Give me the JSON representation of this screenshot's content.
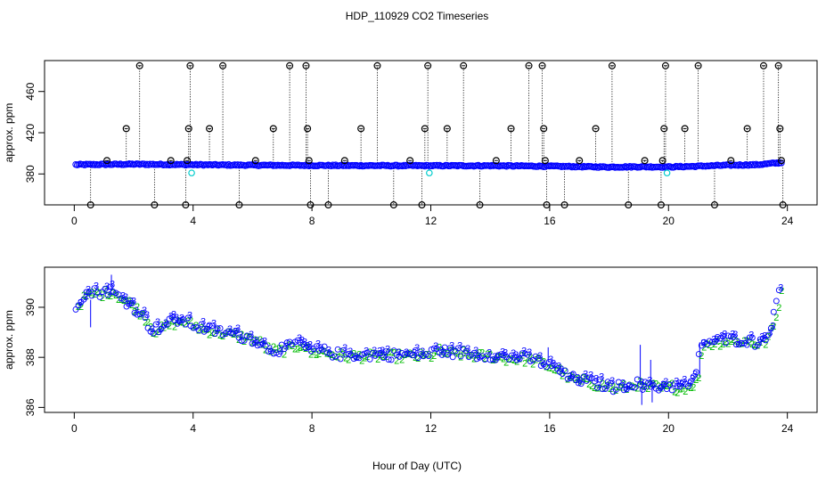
{
  "figure": {
    "title": "HDP_110929  CO2 Timeseries",
    "xlabel": "Hour of Day (UTC)"
  },
  "colors": {
    "frame": "#000000",
    "series_3": "#0000ff",
    "series_2": "#00bb00",
    "cyan_points": "#00cccc",
    "outliers": "#000000"
  },
  "chart_data": [
    {
      "type": "scatter",
      "panel": "top",
      "title": "",
      "xlabel": "",
      "ylabel": "approx. ppm",
      "xlim": [
        -1,
        25
      ],
      "ylim": [
        350,
        490
      ],
      "xticks": [
        0,
        4,
        8,
        12,
        16,
        20,
        24
      ],
      "xtick_labels": [
        "0",
        "4",
        "8",
        "12",
        "16",
        "20",
        "24"
      ],
      "yticks": [
        380,
        420,
        460
      ],
      "ytick_labels": [
        "380",
        "420",
        "460"
      ],
      "grid": false,
      "baseline": [
        [
          0,
          389
        ],
        [
          2,
          389.5
        ],
        [
          4,
          389
        ],
        [
          6,
          388.5
        ],
        [
          8,
          388.3
        ],
        [
          10,
          388.1
        ],
        [
          12,
          388
        ],
        [
          14,
          388
        ],
        [
          16,
          387.5
        ],
        [
          18,
          386.7
        ],
        [
          19,
          387
        ],
        [
          20,
          386.8
        ],
        [
          21,
          387.5
        ],
        [
          22,
          388.5
        ],
        [
          23,
          389
        ],
        [
          23.8,
          391
        ]
      ],
      "cyan_points": [
        [
          3.95,
          381
        ],
        [
          11.95,
          381
        ],
        [
          19.95,
          381
        ]
      ],
      "outlier_spikes": [
        {
          "x": 0.55,
          "y": 350
        },
        {
          "x": 1.1,
          "y": 393
        },
        {
          "x": 1.75,
          "y": 424
        },
        {
          "x": 2.2,
          "y": 485
        },
        {
          "x": 2.7,
          "y": 350
        },
        {
          "x": 3.25,
          "y": 393
        },
        {
          "x": 3.75,
          "y": 350
        },
        {
          "x": 3.8,
          "y": 393
        },
        {
          "x": 3.85,
          "y": 424
        },
        {
          "x": 3.9,
          "y": 485
        },
        {
          "x": 4.55,
          "y": 424
        },
        {
          "x": 5.0,
          "y": 485
        },
        {
          "x": 5.55,
          "y": 350
        },
        {
          "x": 6.1,
          "y": 393
        },
        {
          "x": 6.7,
          "y": 424
        },
        {
          "x": 7.25,
          "y": 485
        },
        {
          "x": 7.8,
          "y": 485
        },
        {
          "x": 7.85,
          "y": 424
        },
        {
          "x": 7.9,
          "y": 393
        },
        {
          "x": 7.95,
          "y": 350
        },
        {
          "x": 8.55,
          "y": 350
        },
        {
          "x": 9.1,
          "y": 393
        },
        {
          "x": 9.65,
          "y": 424
        },
        {
          "x": 10.2,
          "y": 485
        },
        {
          "x": 10.75,
          "y": 350
        },
        {
          "x": 11.3,
          "y": 393
        },
        {
          "x": 11.7,
          "y": 350
        },
        {
          "x": 11.8,
          "y": 424
        },
        {
          "x": 11.9,
          "y": 485
        },
        {
          "x": 12.55,
          "y": 424
        },
        {
          "x": 13.1,
          "y": 485
        },
        {
          "x": 13.65,
          "y": 350
        },
        {
          "x": 14.2,
          "y": 393
        },
        {
          "x": 14.7,
          "y": 424
        },
        {
          "x": 15.3,
          "y": 485
        },
        {
          "x": 15.75,
          "y": 485
        },
        {
          "x": 15.8,
          "y": 424
        },
        {
          "x": 15.85,
          "y": 393
        },
        {
          "x": 15.9,
          "y": 350
        },
        {
          "x": 16.5,
          "y": 350
        },
        {
          "x": 17.0,
          "y": 393
        },
        {
          "x": 17.55,
          "y": 424
        },
        {
          "x": 18.1,
          "y": 485
        },
        {
          "x": 18.65,
          "y": 350
        },
        {
          "x": 19.2,
          "y": 393
        },
        {
          "x": 19.75,
          "y": 350
        },
        {
          "x": 19.8,
          "y": 393
        },
        {
          "x": 19.85,
          "y": 424
        },
        {
          "x": 19.9,
          "y": 485
        },
        {
          "x": 20.55,
          "y": 424
        },
        {
          "x": 21.0,
          "y": 485
        },
        {
          "x": 21.55,
          "y": 350
        },
        {
          "x": 22.1,
          "y": 393
        },
        {
          "x": 22.65,
          "y": 424
        },
        {
          "x": 23.2,
          "y": 485
        },
        {
          "x": 23.7,
          "y": 485
        },
        {
          "x": 23.75,
          "y": 424
        },
        {
          "x": 23.8,
          "y": 393
        },
        {
          "x": 23.85,
          "y": 350
        }
      ]
    },
    {
      "type": "scatter",
      "panel": "bottom",
      "title": "",
      "xlabel": "",
      "ylabel": "approx. ppm",
      "xlim": [
        -1,
        25
      ],
      "ylim": [
        385.8,
        391.6
      ],
      "xticks": [
        0,
        4,
        8,
        12,
        16,
        20,
        24
      ],
      "xtick_labels": [
        "0",
        "4",
        "8",
        "12",
        "16",
        "20",
        "24"
      ],
      "yticks": [
        386,
        388,
        390
      ],
      "ytick_labels": [
        "386",
        "388",
        "390"
      ],
      "grid": false,
      "series_markers": [
        {
          "name": "3",
          "marker": "3",
          "color": "#0000ff"
        },
        {
          "name": "2",
          "marker": "2",
          "color": "#00bb00"
        }
      ],
      "trend": [
        [
          0.05,
          390.1
        ],
        [
          0.3,
          390.5
        ],
        [
          0.6,
          390.6
        ],
        [
          0.9,
          390.6
        ],
        [
          1.2,
          390.7
        ],
        [
          1.5,
          390.4
        ],
        [
          1.8,
          390.2
        ],
        [
          2.1,
          389.9
        ],
        [
          2.4,
          389.5
        ],
        [
          2.6,
          389.1
        ],
        [
          2.9,
          389.2
        ],
        [
          3.2,
          389.4
        ],
        [
          3.5,
          389.5
        ],
        [
          3.8,
          389.4
        ],
        [
          4.2,
          389.2
        ],
        [
          4.6,
          389.1
        ],
        [
          5.0,
          389.0
        ],
        [
          5.4,
          388.9
        ],
        [
          5.8,
          388.8
        ],
        [
          6.1,
          388.7
        ],
        [
          6.4,
          388.4
        ],
        [
          6.8,
          388.3
        ],
        [
          7.2,
          388.4
        ],
        [
          7.6,
          388.6
        ],
        [
          7.9,
          388.2
        ],
        [
          8.2,
          388.3
        ],
        [
          8.6,
          388.2
        ],
        [
          9.0,
          388.1
        ],
        [
          9.5,
          388.1
        ],
        [
          10.0,
          388.1
        ],
        [
          10.5,
          388.1
        ],
        [
          11.0,
          388.1
        ],
        [
          11.5,
          388.1
        ],
        [
          11.9,
          388.1
        ],
        [
          12.2,
          388.3
        ],
        [
          12.6,
          388.2
        ],
        [
          13.0,
          388.2
        ],
        [
          13.5,
          388.1
        ],
        [
          14.0,
          388.1
        ],
        [
          14.5,
          388.0
        ],
        [
          15.0,
          388.0
        ],
        [
          15.5,
          387.9
        ],
        [
          15.9,
          387.7
        ],
        [
          16.3,
          387.5
        ],
        [
          16.6,
          387.2
        ],
        [
          17.0,
          387.1
        ],
        [
          17.4,
          387.0
        ],
        [
          17.8,
          386.9
        ],
        [
          18.2,
          386.8
        ],
        [
          18.6,
          386.9
        ],
        [
          18.9,
          387.0
        ],
        [
          19.1,
          386.8
        ],
        [
          19.4,
          386.9
        ],
        [
          19.7,
          386.8
        ],
        [
          20.0,
          386.9
        ],
        [
          20.3,
          386.8
        ],
        [
          20.6,
          386.9
        ],
        [
          20.9,
          387.1
        ],
        [
          21.1,
          388.6
        ],
        [
          21.4,
          388.6
        ],
        [
          21.8,
          388.7
        ],
        [
          22.2,
          388.7
        ],
        [
          22.6,
          388.7
        ],
        [
          22.9,
          388.6
        ],
        [
          23.2,
          388.7
        ],
        [
          23.5,
          389.4
        ],
        [
          23.75,
          390.9
        ]
      ],
      "spikes": [
        {
          "x": 0.55,
          "from": 390.3,
          "to": 389.2
        },
        {
          "x": 1.25,
          "from": 390.7,
          "to": 391.3
        },
        {
          "x": 15.95,
          "from": 387.8,
          "to": 388.4
        },
        {
          "x": 19.05,
          "from": 386.9,
          "to": 388.5
        },
        {
          "x": 19.1,
          "from": 386.8,
          "to": 386.1
        },
        {
          "x": 19.4,
          "from": 386.9,
          "to": 387.9
        },
        {
          "x": 19.45,
          "from": 386.9,
          "to": 386.2
        },
        {
          "x": 21.05,
          "from": 387.2,
          "to": 388.6
        }
      ]
    }
  ]
}
